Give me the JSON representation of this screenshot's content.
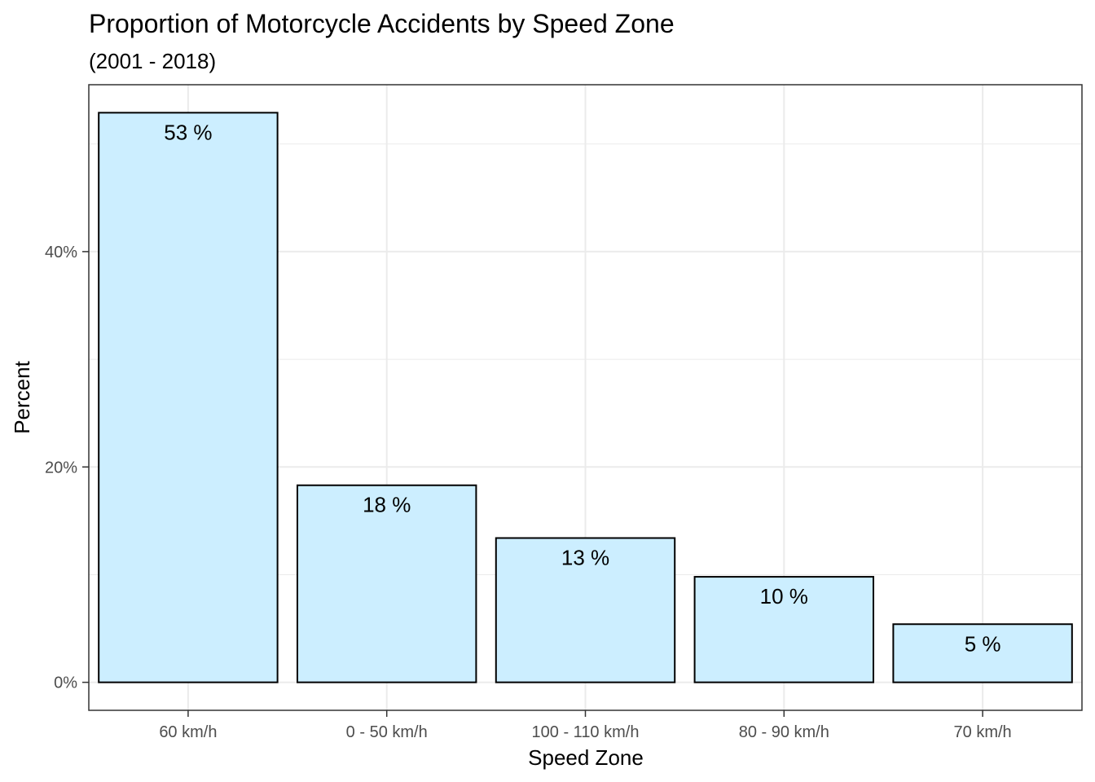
{
  "chart_data": {
    "type": "bar",
    "title": "Proportion of Motorcycle Accidents by Speed Zone",
    "subtitle": "(2001 - 2018)",
    "xlabel": "Speed Zone",
    "ylabel": "Percent",
    "categories": [
      "60 km/h",
      "0 - 50 km/h",
      "100 - 110 km/h",
      "80 - 90 km/h",
      "70 km/h"
    ],
    "values": [
      52.9,
      18.3,
      13.4,
      9.8,
      5.4
    ],
    "data_labels": [
      "53 %",
      "18 %",
      "13 %",
      "10 %",
      "5 %"
    ],
    "ylim": [
      -2.6,
      55.5
    ],
    "y_ticks": [
      0,
      20,
      40
    ],
    "y_tick_labels": [
      "0%",
      "20%",
      "40%"
    ],
    "y_minor_ticks": [
      10,
      30,
      50
    ],
    "grid": true,
    "legend": "none",
    "colors": {
      "bar_fill": "#cceeff",
      "bar_stroke": "#000000",
      "grid": "#ebebeb",
      "panel_border": "#333333"
    }
  }
}
